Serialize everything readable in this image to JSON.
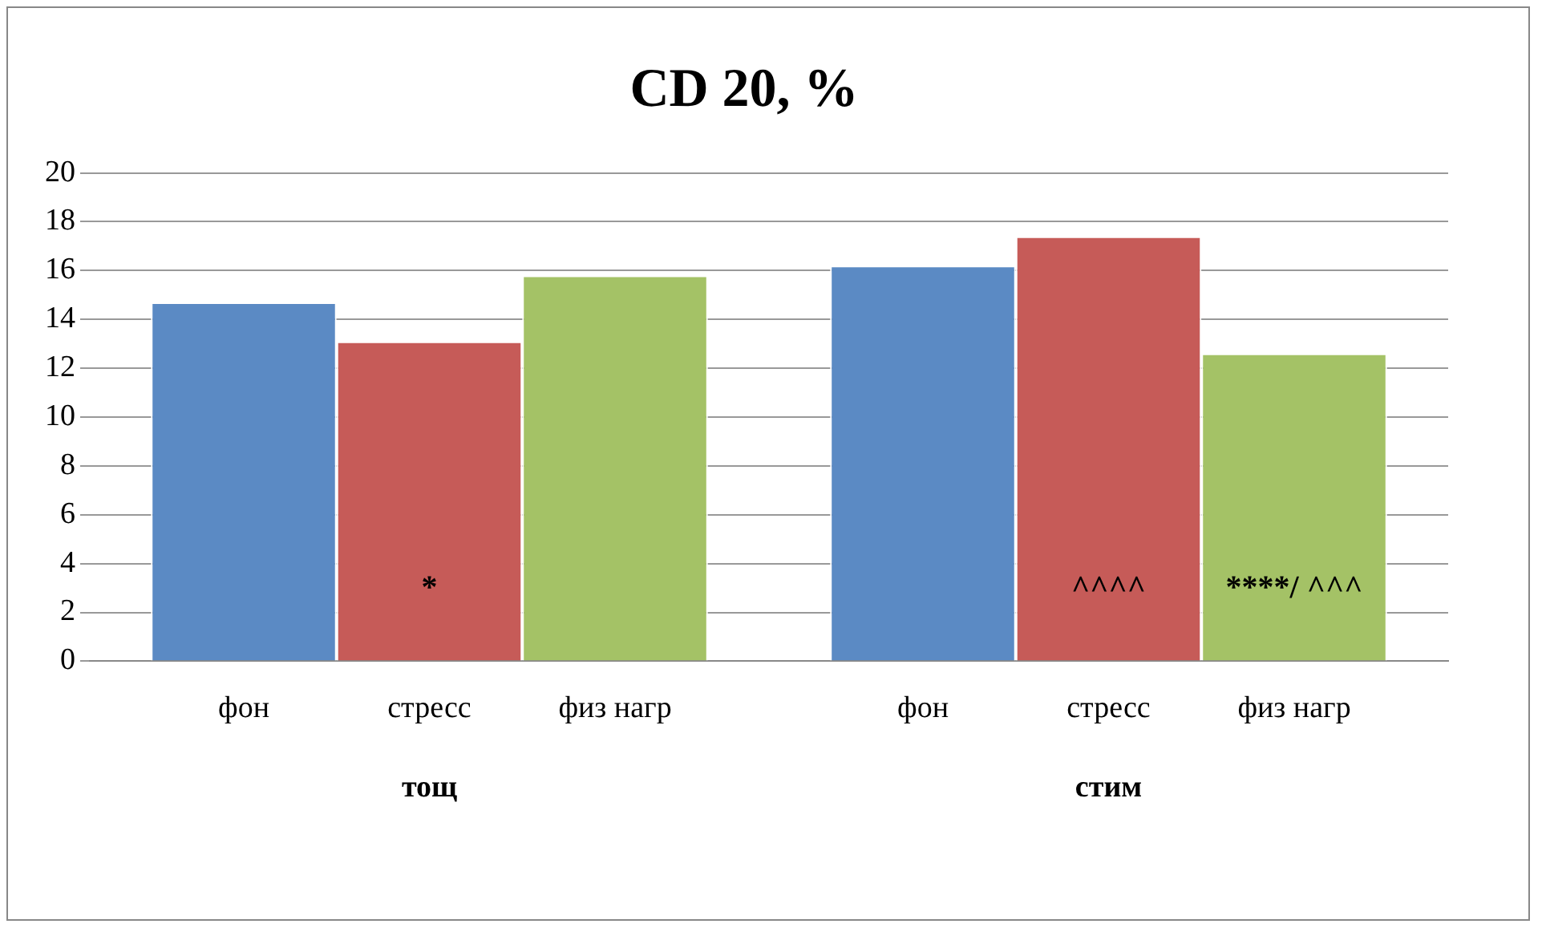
{
  "chart_data": {
    "type": "bar",
    "title": "CD 20, %",
    "categories": [
      "тощ",
      "стим"
    ],
    "series": [
      {
        "name": "фон",
        "color": "#5b8ac4",
        "values": [
          14.7,
          16.2
        ]
      },
      {
        "name": "стресс",
        "color": "#c65b58",
        "values": [
          13.1,
          17.4
        ],
        "value_labels": [
          "*",
          "^^^^"
        ]
      },
      {
        "name": "физ нагр",
        "color": "#a4c266",
        "values": [
          15.8,
          12.6
        ],
        "value_labels": [
          null,
          "****/ ^^^"
        ]
      }
    ],
    "ylim": [
      0,
      20
    ],
    "yticks": [
      0,
      2,
      4,
      6,
      8,
      10,
      12,
      14,
      16,
      18,
      20
    ],
    "grid": "y",
    "legend": false
  }
}
